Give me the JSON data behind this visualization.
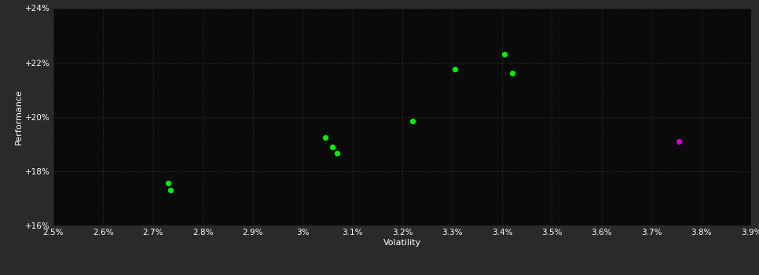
{
  "green_points": [
    [
      2.73,
      17.55
    ],
    [
      2.735,
      17.3
    ],
    [
      3.045,
      19.25
    ],
    [
      3.06,
      18.88
    ],
    [
      3.07,
      18.65
    ],
    [
      3.22,
      19.85
    ],
    [
      3.305,
      21.75
    ],
    [
      3.405,
      22.3
    ],
    [
      3.42,
      21.6
    ]
  ],
  "magenta_points": [
    [
      3.755,
      19.1
    ]
  ],
  "x_min": 2.5,
  "x_max": 3.9,
  "y_min": 16.0,
  "y_max": 24.0,
  "x_ticks": [
    2.5,
    2.6,
    2.7,
    2.8,
    2.9,
    3.0,
    3.1,
    3.2,
    3.3,
    3.4,
    3.5,
    3.6,
    3.7,
    3.8,
    3.9
  ],
  "y_ticks": [
    16,
    18,
    20,
    22,
    24
  ],
  "xlabel": "Volatility",
  "ylabel": "Performance",
  "outer_bg_color": "#2a2a2a",
  "plot_bg_color": "#0a0a0a",
  "grid_color": "#3a3a3a",
  "text_color": "#ffffff",
  "green_color": "#00ee00",
  "magenta_color": "#cc00cc",
  "marker_size": 18
}
